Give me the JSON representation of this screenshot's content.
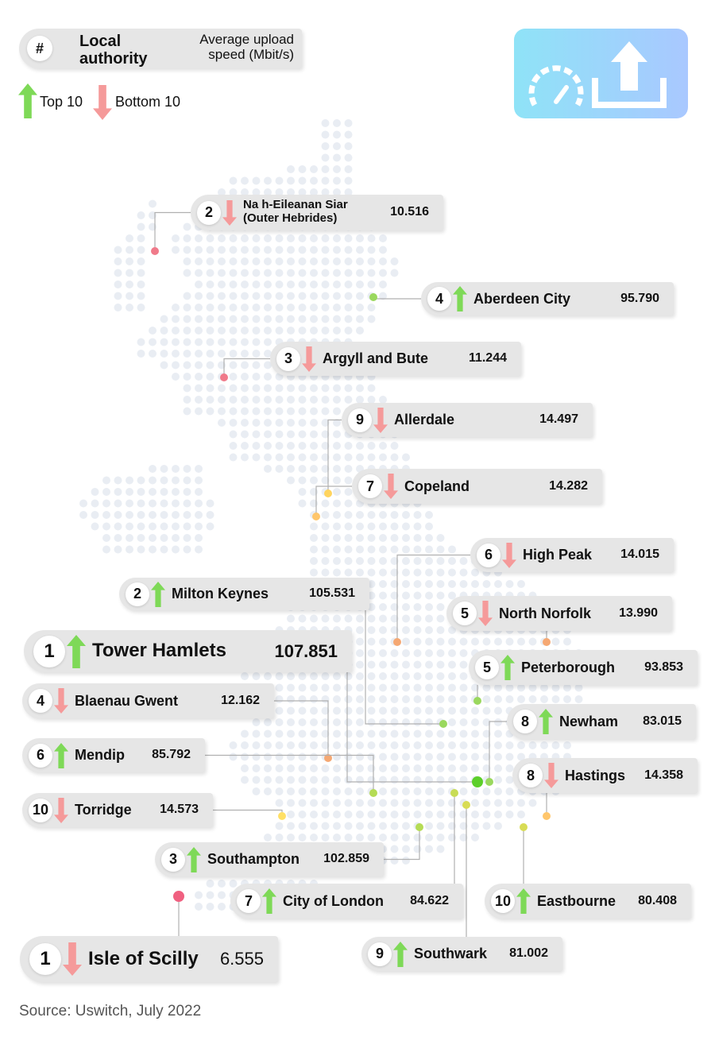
{
  "header": {
    "rank_symbol": "#",
    "column_name": "Local authority",
    "column_value": "Average upload speed (Mbit/s)"
  },
  "legend": {
    "top": "Top 10",
    "bottom": "Bottom 10"
  },
  "entries": [
    {
      "rank": "2",
      "group": "bottom",
      "name": "Na h-Eileanan Siar (Outer Hebrides)",
      "speed": "10.516"
    },
    {
      "rank": "4",
      "group": "top",
      "name": "Aberdeen City",
      "speed": "95.790"
    },
    {
      "rank": "3",
      "group": "bottom",
      "name": "Argyll and Bute",
      "speed": "11.244"
    },
    {
      "rank": "9",
      "group": "bottom",
      "name": "Allerdale",
      "speed": "14.497"
    },
    {
      "rank": "7",
      "group": "bottom",
      "name": "Copeland",
      "speed": "14.282"
    },
    {
      "rank": "6",
      "group": "bottom",
      "name": "High Peak",
      "speed": "14.015"
    },
    {
      "rank": "2",
      "group": "top",
      "name": "Milton Keynes",
      "speed": "105.531"
    },
    {
      "rank": "5",
      "group": "bottom",
      "name": "North Norfolk",
      "speed": "13.990"
    },
    {
      "rank": "1",
      "group": "top",
      "name": "Tower Hamlets",
      "speed": "107.851"
    },
    {
      "rank": "5",
      "group": "top",
      "name": "Peterborough",
      "speed": "93.853"
    },
    {
      "rank": "4",
      "group": "bottom",
      "name": "Blaenau Gwent",
      "speed": "12.162"
    },
    {
      "rank": "8",
      "group": "top",
      "name": "Newham",
      "speed": "83.015"
    },
    {
      "rank": "6",
      "group": "top",
      "name": "Mendip",
      "speed": "85.792"
    },
    {
      "rank": "8",
      "group": "bottom",
      "name": "Hastings",
      "speed": "14.358"
    },
    {
      "rank": "10",
      "group": "bottom",
      "name": "Torridge",
      "speed": "14.573"
    },
    {
      "rank": "3",
      "group": "top",
      "name": "Southampton",
      "speed": "102.859"
    },
    {
      "rank": "7",
      "group": "top",
      "name": "City of London",
      "speed": "84.622"
    },
    {
      "rank": "10",
      "group": "top",
      "name": "Eastbourne",
      "speed": "80.408"
    },
    {
      "rank": "1",
      "group": "bottom",
      "name": "Isle of Scilly",
      "speed": "6.555"
    },
    {
      "rank": "9",
      "group": "top",
      "name": "Southwark",
      "speed": "81.002"
    }
  ],
  "source": "Source: Uswitch, July 2022"
}
